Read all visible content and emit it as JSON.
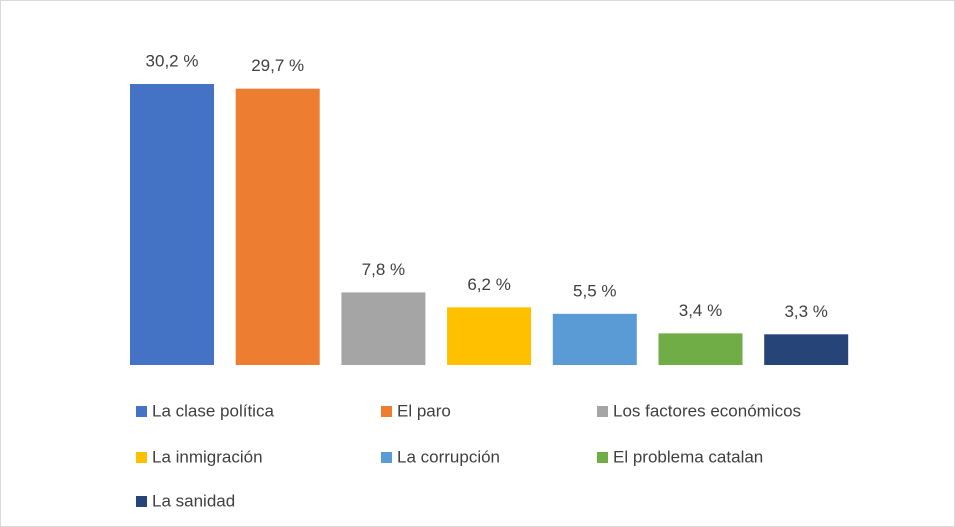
{
  "chart_data": {
    "type": "bar",
    "series": [
      {
        "name": "La clase política",
        "color": "#4472c4",
        "values": [
          30.2
        ],
        "value_labels": [
          "30,2 %"
        ]
      },
      {
        "name": "El paro",
        "color": "#ed7d31",
        "values": [
          29.7
        ],
        "value_labels": [
          "29,7 %"
        ]
      },
      {
        "name": "Los factores económicos",
        "color": "#a5a5a5",
        "values": [
          7.8
        ],
        "value_labels": [
          "7,8 %"
        ]
      },
      {
        "name": "La inmigración",
        "color": "#ffc000",
        "values": [
          6.2
        ],
        "value_labels": [
          "6,2 %"
        ]
      },
      {
        "name": "La corrupción",
        "color": "#5b9bd5",
        "values": [
          5.5
        ],
        "value_labels": [
          "5,5 %"
        ]
      },
      {
        "name": "El problema catalan",
        "color": "#70ad47",
        "values": [
          3.4
        ],
        "value_labels": [
          "3,4 %"
        ]
      },
      {
        "name": "La sanidad",
        "color": "#264478",
        "values": [
          3.3
        ],
        "value_labels": [
          "3,3 %"
        ]
      }
    ],
    "legend": "bottom"
  }
}
